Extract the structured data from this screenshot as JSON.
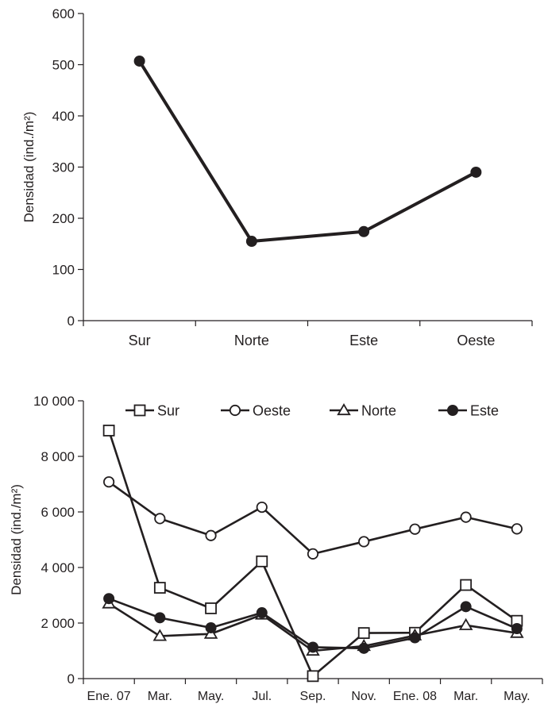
{
  "chart_data": [
    {
      "type": "line",
      "categories": [
        "Sur",
        "Norte",
        "Este",
        "Oeste"
      ],
      "values": [
        507,
        155,
        174,
        290
      ],
      "ylabel": "Densidad (ind./m²)",
      "ylim": [
        0,
        600
      ],
      "yticks": [
        "0",
        "100",
        "200",
        "300",
        "400",
        "500",
        "600"
      ],
      "grid": false,
      "marker": "filled-circle"
    },
    {
      "type": "line",
      "categories": [
        "Ene. 07",
        "Mar.",
        "May.",
        "Jul.",
        "Sep.",
        "Nov.",
        "Ene. 08",
        "Mar.",
        "May."
      ],
      "ylabel": "Densidad (ind./m²)",
      "ylim": [
        0,
        10000
      ],
      "yticks": [
        "0",
        "2 000",
        "4 000",
        "6 000",
        "8 000",
        "10 000"
      ],
      "grid": false,
      "legend_position": "top",
      "series": [
        {
          "name": "Sur",
          "marker": "open-square",
          "values": [
            8930,
            3270,
            2530,
            4220,
            90,
            1640,
            1650,
            3370,
            2080
          ]
        },
        {
          "name": "Oeste",
          "marker": "open-circle",
          "values": [
            7080,
            5760,
            5150,
            6170,
            4490,
            4930,
            5380,
            5810,
            5390
          ]
        },
        {
          "name": "Norte",
          "marker": "open-triangle",
          "values": [
            2700,
            1530,
            1610,
            2300,
            1000,
            1170,
            1550,
            1920,
            1640
          ]
        },
        {
          "name": "Este",
          "marker": "filled-circle",
          "values": [
            2880,
            2190,
            1830,
            2370,
            1130,
            1090,
            1470,
            2590,
            1800
          ]
        }
      ]
    }
  ]
}
